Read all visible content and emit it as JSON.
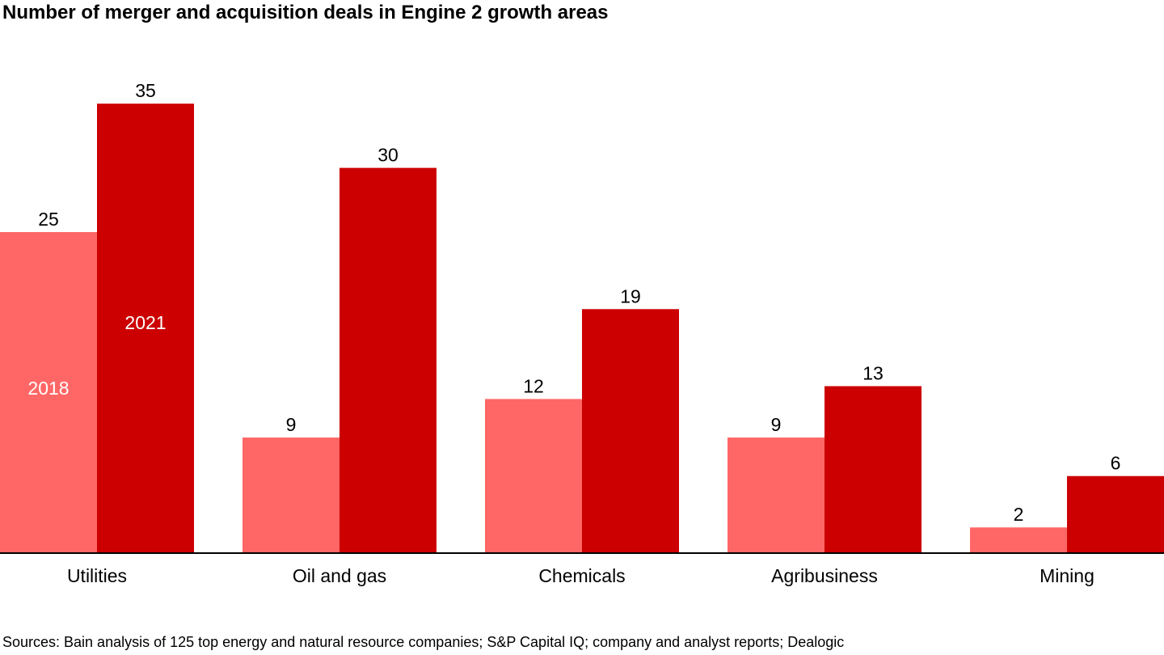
{
  "chart_data": {
    "type": "bar",
    "title": "Number of merger and acquisition deals in Engine 2 growth areas",
    "xlabel": "",
    "ylabel": "",
    "categories": [
      "Utilities",
      "Oil and gas",
      "Chemicals",
      "Agribusiness",
      "Mining"
    ],
    "series": [
      {
        "name": "2018",
        "values": [
          25,
          9,
          12,
          9,
          2
        ],
        "color": "#ff6666"
      },
      {
        "name": "2021",
        "values": [
          35,
          30,
          19,
          13,
          6
        ],
        "color": "#cc0000"
      }
    ],
    "ylim": [
      0,
      35
    ],
    "grid": false,
    "legend": "inside-first-group",
    "data_labels": true,
    "source": "Sources: Bain analysis of 125 top energy and natural resource companies; S&P Capital IQ; company and analyst reports; Dealogic"
  }
}
